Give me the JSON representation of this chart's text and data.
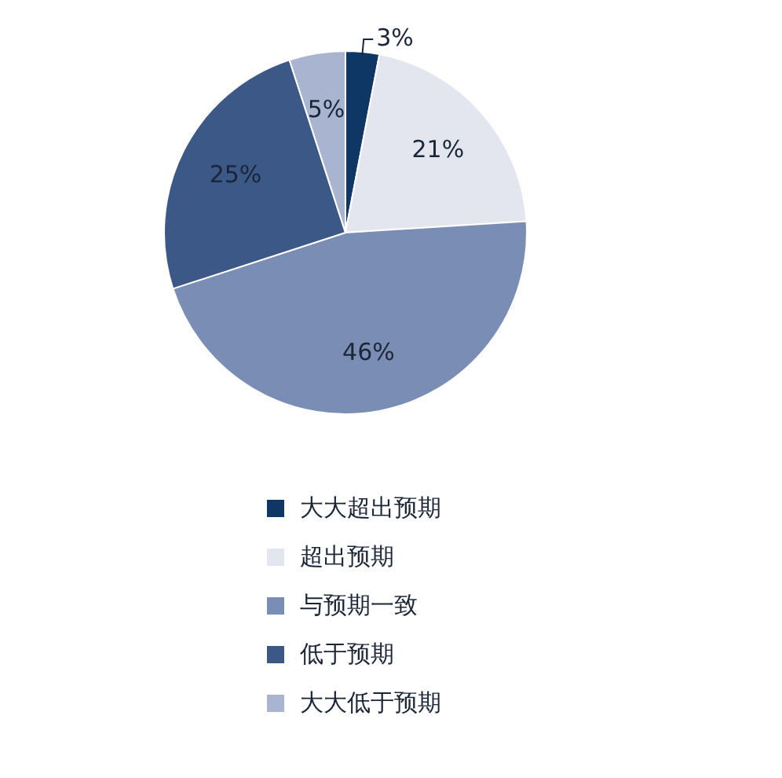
{
  "chart_data": {
    "type": "pie",
    "categories": [
      "大大超出预期",
      "超出预期",
      "与预期一致",
      "低于预期",
      "大大低于预期"
    ],
    "values": [
      3,
      21,
      46,
      25,
      5
    ],
    "colors": [
      "#0e3765",
      "#e3e6ef",
      "#7a8db4",
      "#3c5887",
      "#a9b4d0"
    ],
    "value_labels": [
      "3%",
      "21%",
      "46%",
      "25%",
      "5%"
    ],
    "legend": "bottom"
  }
}
